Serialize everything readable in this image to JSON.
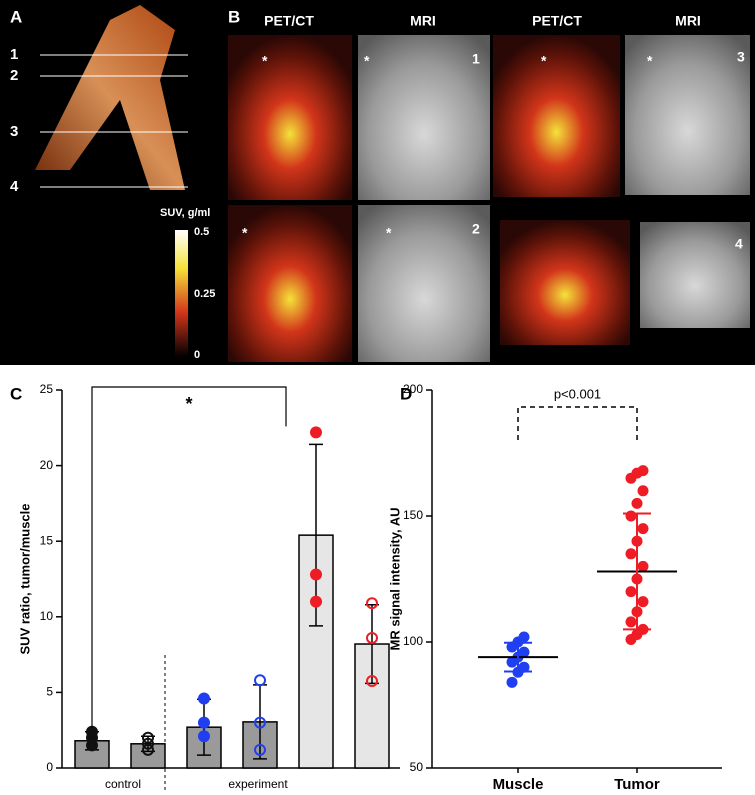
{
  "figure": {
    "panel_a": {
      "letter": "A",
      "levels": [
        "1",
        "2",
        "3",
        "4"
      ]
    },
    "panel_b": {
      "letter": "B",
      "headers": [
        "PET/CT",
        "MRI",
        "PET/CT",
        "MRI"
      ],
      "numbers": [
        "1",
        "2",
        "3",
        "4"
      ],
      "asterisk": "*"
    },
    "colorbar": {
      "title": "SUV, g/ml",
      "labels": [
        "0.5",
        "0.25",
        "0"
      ]
    }
  },
  "chart_data": [
    {
      "type": "bar",
      "panel": "C",
      "ylabel": "SUV ratio, tumor/muscle",
      "groups": [
        "control",
        "experiment"
      ],
      "ylim": [
        0,
        25
      ],
      "yticks": [
        0,
        5,
        10,
        15,
        20,
        25
      ],
      "values": [
        1.8,
        1.6,
        2.7,
        3.05,
        15.4,
        8.2
      ],
      "errors": [
        0.6,
        0.5,
        1.85,
        2.45,
        6,
        2.6
      ],
      "bar_colors": [
        "#9a9a9a",
        "#9a9a9a",
        "#9a9a9a",
        "#9a9a9a",
        "#e6e6e6",
        "#e6e6e6"
      ],
      "points": [
        [
          1.5,
          2.0,
          2.4
        ],
        [
          1.2,
          1.6,
          2.0
        ],
        [
          4.6,
          3.0,
          2.1
        ],
        [
          5.8,
          3.0,
          1.2
        ],
        [
          22.2,
          12.8,
          11.0
        ],
        [
          10.9,
          8.6,
          5.75
        ]
      ],
      "point_colors": [
        "#111111",
        "#111111",
        "#1f3ff0",
        "#1f3ff0",
        "#ee1c25",
        "#ee1c25"
      ],
      "point_filled": [
        true,
        false,
        true,
        false,
        true,
        false
      ],
      "annotation": "*"
    },
    {
      "type": "dot",
      "panel": "D",
      "ylabel": "MR signal intensity, AU",
      "ylim": [
        50,
        200
      ],
      "yticks": [
        50,
        100,
        150,
        200
      ],
      "categories": [
        "Muscle",
        "Tumor"
      ],
      "means": [
        94,
        128
      ],
      "errors": [
        5.7,
        23
      ],
      "colors": [
        "#1f3ff0",
        "#ee1c25"
      ],
      "points": [
        [
          84,
          88,
          90,
          92,
          94,
          96,
          98,
          100,
          102
        ],
        [
          101,
          103,
          105,
          108,
          112,
          116,
          120,
          125,
          130,
          135,
          140,
          145,
          150,
          155,
          160,
          165,
          167,
          168
        ]
      ],
      "annotation": "p<0.001"
    }
  ]
}
